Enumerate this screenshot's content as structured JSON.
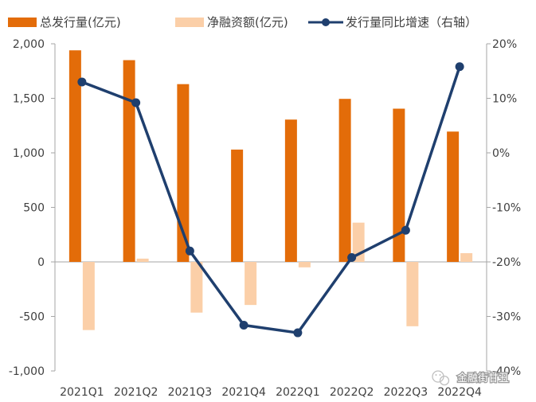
{
  "chart_data": {
    "type": "bar+line",
    "categories": [
      "2021Q1",
      "2021Q2",
      "2021Q3",
      "2021Q4",
      "2022Q1",
      "2022Q2",
      "2022Q3",
      "2022Q4"
    ],
    "series": [
      {
        "name": "总发行量(亿元)",
        "type": "bar",
        "axis": "left",
        "color": "#E36C09",
        "values": [
          1940,
          1850,
          1630,
          1030,
          1305,
          1495,
          1405,
          1195
        ]
      },
      {
        "name": "净融资额(亿元)",
        "type": "bar",
        "axis": "left",
        "color": "#FBCFA8",
        "values": [
          -625,
          30,
          -465,
          -395,
          -50,
          360,
          -590,
          80
        ]
      },
      {
        "name": "发行量同比增速（右轴）",
        "type": "line",
        "axis": "right",
        "color": "#1F3F6E",
        "values": [
          0.13,
          0.092,
          -0.18,
          -0.316,
          -0.33,
          -0.192,
          -0.142,
          0.158
        ]
      }
    ],
    "y_left": {
      "min": -1000,
      "max": 2000,
      "step": 500,
      "tick_labels": [
        "-1,000",
        "-500",
        "0",
        "500",
        "1,000",
        "1,500",
        "2,000"
      ]
    },
    "y_right": {
      "min": -0.4,
      "max": 0.2,
      "step": 0.1,
      "tick_labels": [
        "-40%",
        "-30%",
        "-20%",
        "-10%",
        "0%",
        "10%",
        "20%"
      ]
    },
    "grid": false,
    "legend_position": "top"
  },
  "watermark": {
    "text": "金融街甘丑",
    "icon": "wechat-icon"
  }
}
